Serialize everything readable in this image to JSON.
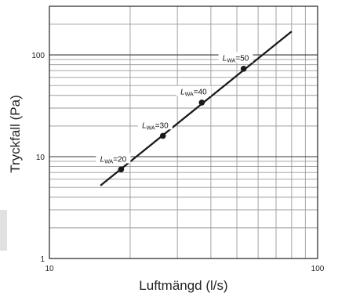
{
  "chart_data": {
    "type": "line",
    "xlabel": "Luftmängd (l/s)",
    "ylabel": "Tryckfall (Pa)",
    "xscale": "log",
    "yscale": "log",
    "xlim": [
      10,
      100
    ],
    "ylim": [
      1,
      300
    ],
    "x_tick_labels": [
      {
        "value": 10,
        "label": "10"
      },
      {
        "value": 100,
        "label": "100"
      }
    ],
    "y_tick_labels": [
      {
        "value": 1,
        "label": "1"
      },
      {
        "value": 10,
        "label": "10"
      },
      {
        "value": 100,
        "label": "100"
      }
    ],
    "grid": true,
    "series": [
      {
        "color": "#1a1a1a",
        "x": [
          15.5,
          80
        ],
        "y": [
          5.2,
          170
        ]
      }
    ],
    "points": [
      {
        "x": 18.5,
        "y": 7.5
      },
      {
        "x": 26.5,
        "y": 16
      },
      {
        "x": 37,
        "y": 34
      },
      {
        "x": 53,
        "y": 73
      }
    ],
    "annotations": [
      {
        "italic": "L",
        "sub": "WA",
        "text": "=20",
        "x": 17.3,
        "y": 9.4
      },
      {
        "italic": "L",
        "sub": "WA",
        "text": "=30",
        "x": 24.8,
        "y": 20.2
      },
      {
        "italic": "L",
        "sub": "WA",
        "text": "=40",
        "x": 34.5,
        "y": 43
      },
      {
        "italic": "L",
        "sub": "WA",
        "text": "=50",
        "x": 49.5,
        "y": 92
      }
    ]
  }
}
